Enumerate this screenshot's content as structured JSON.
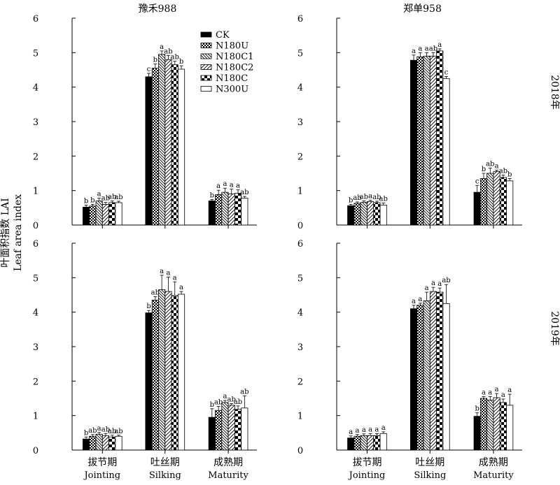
{
  "legend": [
    "CK",
    "N180U",
    "N180C1",
    "N180C2",
    "N180C",
    "N300U"
  ],
  "ylabel": {
    "cn": "叶面积指数 LAI",
    "en": "Leaf area index"
  },
  "years": [
    "2018年",
    "2019年"
  ],
  "colors": {
    "ink": "#000000",
    "paper": "#ffffff"
  },
  "chart_data": [
    {
      "type": "bar",
      "title": "豫禾988",
      "year": "2018年",
      "categories": [
        {
          "cn": "拔节期",
          "en": "Jointing"
        },
        {
          "cn": "吐丝期",
          "en": "Silking"
        },
        {
          "cn": "成熟期",
          "en": "Maturity"
        }
      ],
      "ylim": [
        0,
        6
      ],
      "yticks": [
        0,
        1,
        2,
        3,
        4,
        5,
        6
      ],
      "series": [
        {
          "name": "CK",
          "values": [
            0.52,
            4.3,
            0.7
          ],
          "errors": [
            0.06,
            0.1,
            0.04
          ],
          "labels": [
            "b",
            "c",
            "b"
          ]
        },
        {
          "name": "N180U",
          "values": [
            0.55,
            4.55,
            0.88
          ],
          "errors": [
            0.05,
            0.12,
            0.13
          ],
          "labels": [
            "b",
            "b",
            "a"
          ]
        },
        {
          "name": "N180C1",
          "values": [
            0.7,
            4.95,
            0.95
          ],
          "errors": [
            0.08,
            0.1,
            0.12
          ],
          "labels": [
            "a",
            "a",
            "a"
          ]
        },
        {
          "name": "N180C2",
          "values": [
            0.6,
            4.8,
            0.9
          ],
          "errors": [
            0.06,
            0.12,
            0.14
          ],
          "labels": [
            "ab",
            "ab",
            "a"
          ]
        },
        {
          "name": "N180C",
          "values": [
            0.65,
            4.65,
            0.92
          ],
          "errors": [
            0.05,
            0.1,
            0.1
          ],
          "labels": [
            "ab",
            "ab",
            "a"
          ]
        },
        {
          "name": "N300U",
          "values": [
            0.65,
            4.52,
            0.78
          ],
          "errors": [
            0.04,
            0.1,
            0.05
          ],
          "labels": [
            "ab",
            "b",
            "ab"
          ]
        }
      ]
    },
    {
      "type": "bar",
      "title": "郑单958",
      "year": "2018年",
      "categories": [
        {
          "cn": "拔节期",
          "en": "Jointing"
        },
        {
          "cn": "吐丝期",
          "en": "Silking"
        },
        {
          "cn": "成熟期",
          "en": "Maturity"
        }
      ],
      "ylim": [
        0,
        6
      ],
      "yticks": [
        0,
        1,
        2,
        3,
        4,
        5,
        6
      ],
      "series": [
        {
          "name": "CK",
          "values": [
            0.56,
            4.78,
            0.95
          ],
          "errors": [
            0.04,
            0.15,
            0.2
          ],
          "labels": [
            "b",
            "a",
            "c"
          ]
        },
        {
          "name": "N180U",
          "values": [
            0.63,
            4.88,
            1.35
          ],
          "errors": [
            0.04,
            0.12,
            0.15
          ],
          "labels": [
            "ab",
            "a",
            "b"
          ]
        },
        {
          "name": "N180C1",
          "values": [
            0.66,
            4.9,
            1.5
          ],
          "errors": [
            0.04,
            0.1,
            0.15
          ],
          "labels": [
            "ab",
            "a",
            "ab"
          ]
        },
        {
          "name": "N180C2",
          "values": [
            0.68,
            4.9,
            1.55
          ],
          "errors": [
            0.04,
            0.1,
            0.04
          ],
          "labels": [
            "a",
            "ab",
            "a"
          ]
        },
        {
          "name": "N180C",
          "values": [
            0.65,
            5.05,
            1.38
          ],
          "errors": [
            0.04,
            0.06,
            0.07
          ],
          "labels": [
            "ab",
            "a",
            "ab"
          ]
        },
        {
          "name": "N300U",
          "values": [
            0.58,
            4.25,
            1.28
          ],
          "errors": [
            0.06,
            0.06,
            0.07
          ],
          "labels": [
            "ab",
            "c",
            "b"
          ]
        }
      ]
    },
    {
      "type": "bar",
      "title": "",
      "year": "2019年",
      "categories": [
        {
          "cn": "拔节期",
          "en": "Jointing"
        },
        {
          "cn": "吐丝期",
          "en": "Silking"
        },
        {
          "cn": "成熟期",
          "en": "Maturity"
        }
      ],
      "ylim": [
        0,
        6
      ],
      "yticks": [
        0,
        1,
        2,
        3,
        4,
        5,
        6
      ],
      "series": [
        {
          "name": "CK",
          "values": [
            0.32,
            3.98,
            0.95
          ],
          "errors": [
            0.06,
            0.07,
            0.25
          ],
          "labels": [
            "b",
            "b",
            "b"
          ]
        },
        {
          "name": "N180U",
          "values": [
            0.4,
            4.35,
            1.15
          ],
          "errors": [
            0.05,
            0.1,
            0.12
          ],
          "labels": [
            "ab",
            "ab",
            "ab"
          ]
        },
        {
          "name": "N180C1",
          "values": [
            0.46,
            4.65,
            1.38
          ],
          "errors": [
            0.05,
            0.42,
            0.06
          ],
          "labels": [
            "a",
            "a",
            "a"
          ]
        },
        {
          "name": "N180C2",
          "values": [
            0.42,
            4.6,
            1.3
          ],
          "errors": [
            0.06,
            0.42,
            0.05
          ],
          "labels": [
            "ab",
            "a",
            "ab"
          ]
        },
        {
          "name": "N180C",
          "values": [
            0.38,
            4.48,
            1.18
          ],
          "errors": [
            0.05,
            0.4,
            0.1
          ],
          "labels": [
            "ab",
            "a",
            "ab"
          ]
        },
        {
          "name": "N300U",
          "values": [
            0.4,
            4.52,
            1.22
          ],
          "errors": [
            0.03,
            0.08,
            0.35
          ],
          "labels": [
            "ab",
            "a",
            "ab"
          ]
        }
      ]
    },
    {
      "type": "bar",
      "title": "",
      "year": "2019年",
      "categories": [
        {
          "cn": "拔节期",
          "en": "Jointing"
        },
        {
          "cn": "吐丝期",
          "en": "Silking"
        },
        {
          "cn": "成熟期",
          "en": "Maturity"
        }
      ],
      "ylim": [
        0,
        6
      ],
      "yticks": [
        0,
        1,
        2,
        3,
        4,
        5,
        6
      ],
      "series": [
        {
          "name": "CK",
          "values": [
            0.35,
            4.1,
            0.98
          ],
          "errors": [
            0.06,
            0.1,
            0.1
          ],
          "labels": [
            "a",
            "a",
            "b"
          ]
        },
        {
          "name": "N180U",
          "values": [
            0.4,
            4.2,
            1.5
          ],
          "errors": [
            0.05,
            0.06,
            0.05
          ],
          "labels": [
            "a",
            "a",
            "a"
          ]
        },
        {
          "name": "N180C1",
          "values": [
            0.42,
            4.33,
            1.45
          ],
          "errors": [
            0.05,
            0.25,
            0.1
          ],
          "labels": [
            "a",
            "a",
            "a"
          ]
        },
        {
          "name": "N180C2",
          "values": [
            0.42,
            4.6,
            1.52
          ],
          "errors": [
            0.06,
            0.12,
            0.12
          ],
          "labels": [
            "a",
            "a",
            "a"
          ]
        },
        {
          "name": "N180C",
          "values": [
            0.42,
            4.58,
            1.38
          ],
          "errors": [
            0.06,
            0.12,
            0.1
          ],
          "labels": [
            "a",
            "a",
            "a"
          ]
        },
        {
          "name": "N300U",
          "values": [
            0.48,
            4.25,
            1.3
          ],
          "errors": [
            0.05,
            0.55,
            0.32
          ],
          "labels": [
            "a",
            "ab",
            "a"
          ]
        }
      ]
    }
  ]
}
